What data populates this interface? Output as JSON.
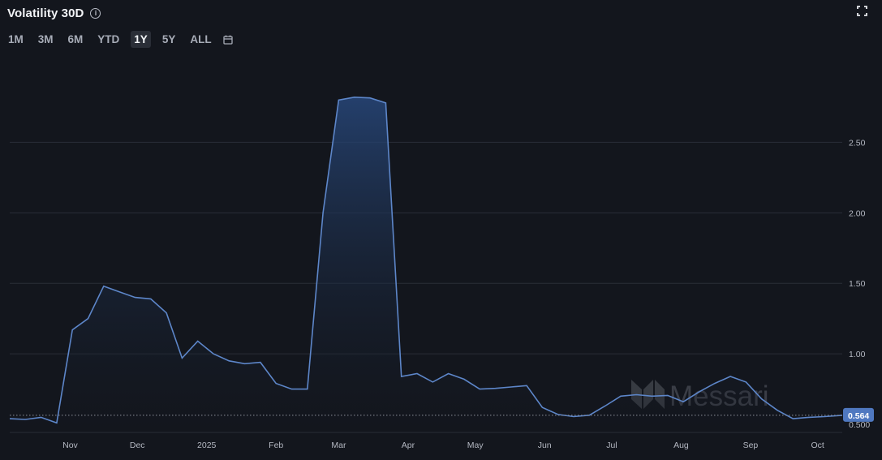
{
  "header": {
    "title": "Volatility 30D"
  },
  "ranges": [
    "1M",
    "3M",
    "6M",
    "YTD",
    "1Y",
    "5Y",
    "ALL"
  ],
  "active_range": "1Y",
  "watermark": "Messari",
  "colors": {
    "background": "#13161d",
    "line": "#5d86c9",
    "area_top": "#27477a",
    "grid": "#2a2e37",
    "badge": "#4f78c0"
  },
  "chart_data": {
    "type": "area",
    "xlabels": [
      "Nov",
      "Dec",
      "2025",
      "Feb",
      "Mar",
      "Apr",
      "May",
      "Jun",
      "Jul",
      "Aug",
      "Sep",
      "Oct"
    ],
    "yticks": [
      "1.00",
      "1.50",
      "2.00",
      "2.50"
    ],
    "ylim": [
      0.46,
      2.98
    ],
    "xlim": [
      "2024-10-05",
      "2025-10-12"
    ],
    "current_value": "0.564",
    "current_value_raw": 0.564,
    "partial_tick_label": "0.500",
    "grid": true,
    "series": [
      {
        "x": [
          "2024-10-05",
          "2024-10-12",
          "2024-10-19",
          "2024-10-26",
          "2024-11-02",
          "2024-11-09",
          "2024-11-16",
          "2024-11-23",
          "2024-11-30",
          "2024-12-07",
          "2024-12-14",
          "2024-12-21",
          "2024-12-28",
          "2025-01-04",
          "2025-01-11",
          "2025-01-18",
          "2025-01-25",
          "2025-02-01",
          "2025-02-08",
          "2025-02-15",
          "2025-02-22",
          "2025-03-01",
          "2025-03-08",
          "2025-03-15",
          "2025-03-22",
          "2025-03-29",
          "2025-04-05",
          "2025-04-12",
          "2025-04-19",
          "2025-04-26",
          "2025-05-03",
          "2025-05-10",
          "2025-05-17",
          "2025-05-24",
          "2025-05-31",
          "2025-06-07",
          "2025-06-14",
          "2025-06-21",
          "2025-06-28",
          "2025-07-05",
          "2025-07-12",
          "2025-07-19",
          "2025-07-26",
          "2025-08-02",
          "2025-08-09",
          "2025-08-16",
          "2025-08-23",
          "2025-08-30",
          "2025-09-06",
          "2025-09-13",
          "2025-09-20",
          "2025-09-27",
          "2025-10-04",
          "2025-10-12"
        ],
        "values": [
          0.54,
          0.535,
          0.55,
          0.51,
          1.17,
          1.25,
          1.48,
          1.44,
          1.4,
          1.39,
          1.29,
          0.97,
          1.09,
          1.0,
          0.95,
          0.93,
          0.94,
          0.79,
          0.75,
          0.75,
          2.0,
          2.8,
          2.82,
          2.815,
          2.78,
          0.84,
          0.86,
          0.8,
          0.86,
          0.82,
          0.75,
          0.755,
          0.765,
          0.775,
          0.62,
          0.57,
          0.555,
          0.565,
          0.63,
          0.7,
          0.71,
          0.7,
          0.705,
          0.66,
          0.73,
          0.79,
          0.84,
          0.8,
          0.68,
          0.6,
          0.54,
          0.55,
          0.555,
          0.564
        ]
      }
    ]
  }
}
